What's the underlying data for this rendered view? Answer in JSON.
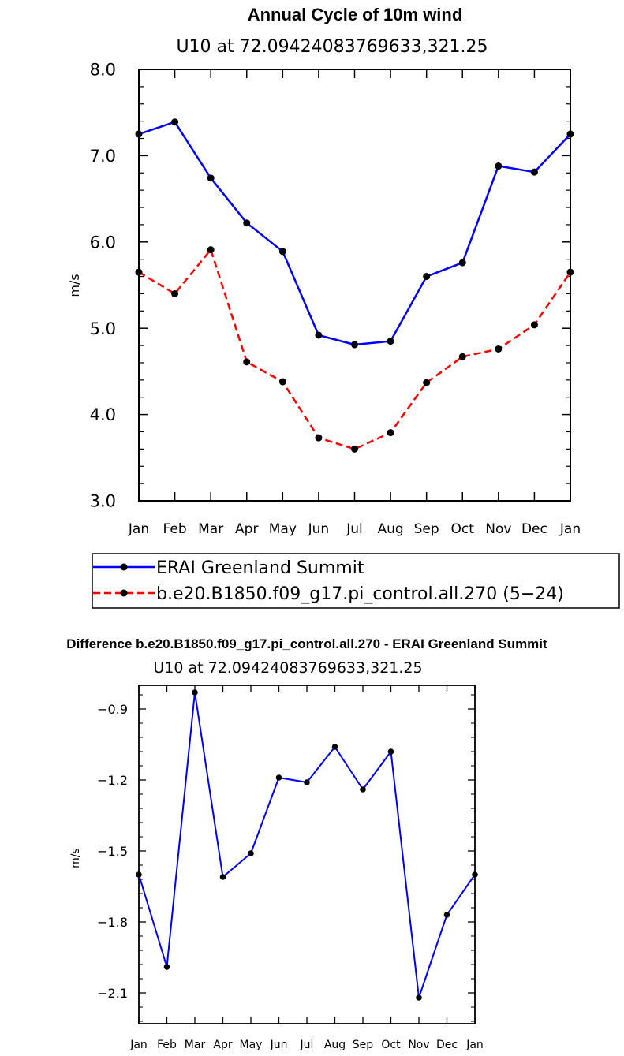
{
  "chart_data": [
    {
      "type": "line",
      "title": "Annual Cycle of 10m wind",
      "subtitle": "U10 at 72.09424083769633,321.25",
      "xlabel": "",
      "ylabel": "m/s",
      "categories": [
        "Jan",
        "Feb",
        "Mar",
        "Apr",
        "May",
        "Jun",
        "Jul",
        "Aug",
        "Sep",
        "Oct",
        "Nov",
        "Dec",
        "Jan"
      ],
      "ylim": [
        3.0,
        8.0
      ],
      "yticks": [
        "3.0",
        "4.0",
        "5.0",
        "6.0",
        "7.0",
        "8.0"
      ],
      "grid": false,
      "legend_position": "below",
      "series": [
        {
          "name": "ERAI Greenland Summit",
          "color": "#0000ff",
          "dash": "solid",
          "values": [
            7.25,
            7.39,
            6.74,
            6.22,
            5.89,
            4.92,
            4.81,
            4.85,
            5.6,
            5.76,
            6.88,
            6.81,
            7.25
          ]
        },
        {
          "name": "b.e20.B1850.f09_g17.pi_control.all.270 (5−24)",
          "color": "#ff0000",
          "dash": "dashed",
          "values": [
            5.65,
            5.4,
            5.91,
            4.61,
            4.38,
            3.73,
            3.6,
            3.79,
            4.37,
            4.67,
            4.76,
            5.04,
            5.65
          ]
        }
      ]
    },
    {
      "type": "line",
      "title": "Difference b.e20.B1850.f09_g17.pi_control.all.270 - ERAI Greenland Summit",
      "subtitle": "U10 at 72.09424083769633,321.25",
      "xlabel": "",
      "ylabel": "m/s",
      "categories": [
        "Jan",
        "Feb",
        "Mar",
        "Apr",
        "May",
        "Jun",
        "Jul",
        "Aug",
        "Sep",
        "Oct",
        "Nov",
        "Dec",
        "Jan"
      ],
      "ylim": [
        -2.23,
        -0.8
      ],
      "yticks": [
        "−2.1",
        "−1.8",
        "−1.5",
        "−1.2",
        "−0.9"
      ],
      "ytick_values": [
        -2.1,
        -1.8,
        -1.5,
        -1.2,
        -0.9
      ],
      "grid": false,
      "series": [
        {
          "color": "#0000ff",
          "dash": "solid",
          "values": [
            -1.6,
            -1.99,
            -0.83,
            -1.61,
            -1.51,
            -1.19,
            -1.21,
            -1.06,
            -1.24,
            -1.08,
            -2.12,
            -1.77,
            -1.6
          ]
        }
      ]
    }
  ]
}
